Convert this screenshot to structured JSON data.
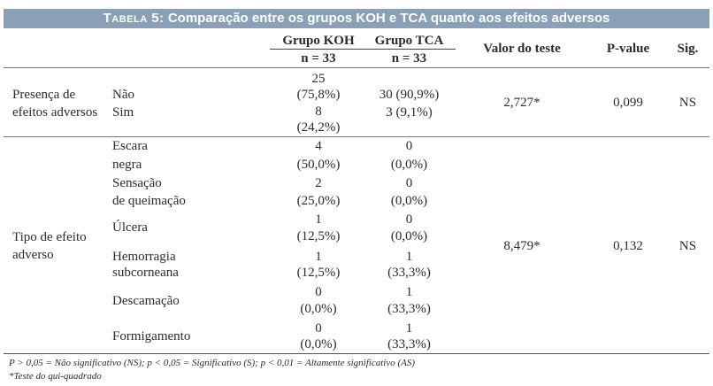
{
  "table": {
    "title_label": "Tabela 5:",
    "title_text": "Comparação entre os grupos KOH e TCA quanto aos efeitos adversos",
    "headers": {
      "koh": "Grupo KOH",
      "tca": "Grupo TCA",
      "koh_n": "n = 33",
      "tca_n": "n = 33",
      "test_value": "Valor do teste",
      "p_value": "P-value",
      "sig": "Sig."
    },
    "section1": {
      "label_line1": "Presença de",
      "label_line2": "efeitos adversos",
      "rows": [
        {
          "name": "Não",
          "koh_count": "25",
          "koh_pct": "(75,8%)",
          "tca": "30 (90,9%)"
        },
        {
          "name": "Sim",
          "koh_count": "8",
          "koh_pct": "(24,2%)",
          "tca": "3 (9,1%)"
        }
      ],
      "test_value": "2,727*",
      "p_value": "0,099",
      "sig": "NS"
    },
    "section2": {
      "label_line1": "Tipo de efeito",
      "label_line2": "adverso",
      "rows": [
        {
          "name1": "Escara",
          "name2": "negra",
          "koh_count": "4",
          "koh_pct": "(50,0%)",
          "tca_count": "0",
          "tca_pct": "(0,0%)"
        },
        {
          "name1": "Sensação",
          "name2": "de queimação",
          "koh_count": "2",
          "koh_pct": "(25,0%)",
          "tca_count": "0",
          "tca_pct": "(0,0%)"
        },
        {
          "name1": "Úlcera",
          "name2": "",
          "koh_count": "1",
          "koh_pct": "(12,5%)",
          "tca_count": "0",
          "tca_pct": "(0,0%)"
        },
        {
          "name1": "Hemorragia",
          "name2": "subcorneana",
          "koh_count": "1",
          "koh_pct": "(12,5%)",
          "tca_count": "1",
          "tca_pct": "(33,3%)"
        },
        {
          "name1": "Descamação",
          "name2": "",
          "koh_count": "0",
          "koh_pct": "(0,0%)",
          "tca_count": "1",
          "tca_pct": "(33,3%)"
        },
        {
          "name1": "Formigamento",
          "name2": "",
          "koh_count": "0",
          "koh_pct": "(0,0%)",
          "tca_count": "1",
          "tca_pct": "(33,3%)"
        }
      ],
      "test_value": "8,479*",
      "p_value": "0,132",
      "sig": "NS"
    },
    "footnote1": "P > 0,05 = Não significativo (NS); p < 0,05 = Significativo (S); p < 0,01 = Altamente significativo (AS)",
    "footnote2": "*Teste do qui-quadrado"
  }
}
